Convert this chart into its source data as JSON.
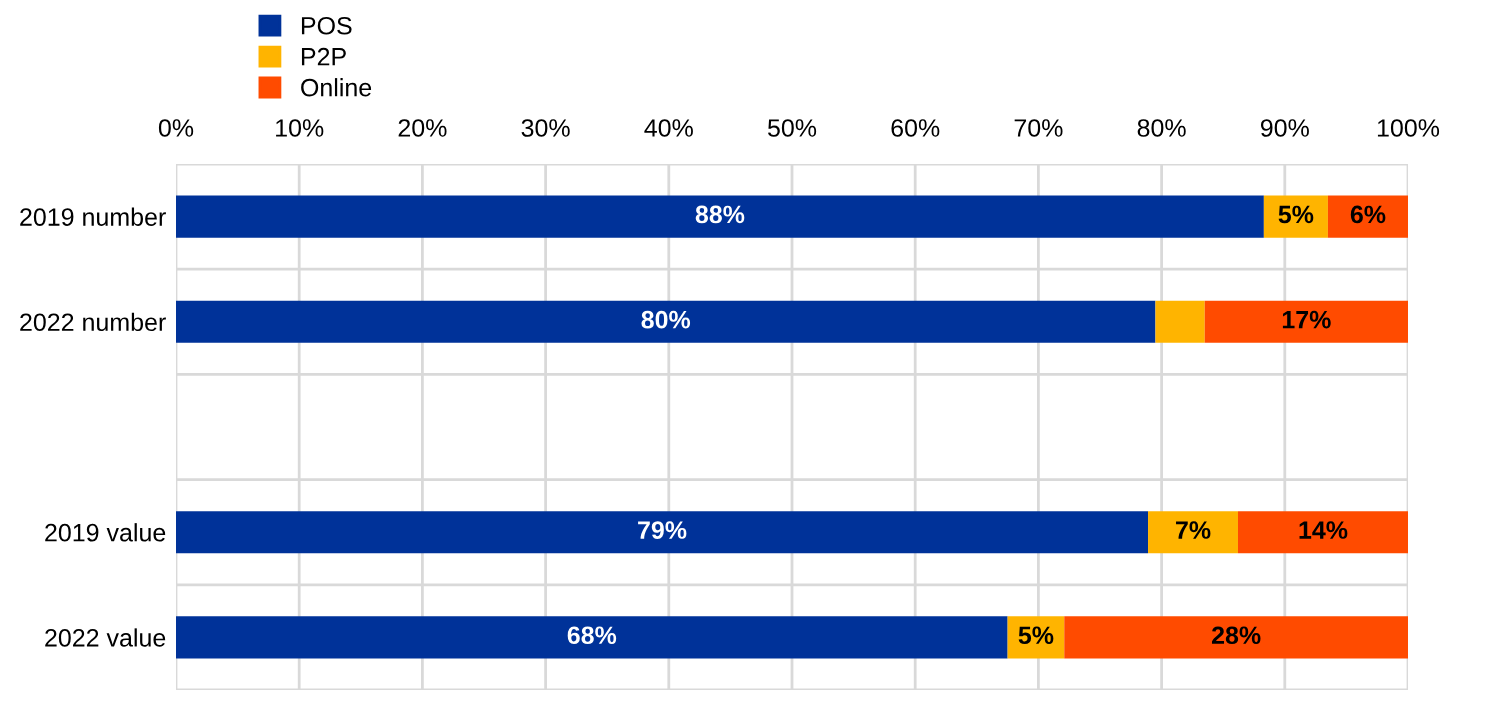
{
  "chart_data": {
    "type": "bar",
    "orientation": "horizontal",
    "stacked": true,
    "categories": [
      "2019 number",
      "2022 number",
      null,
      "2019 value",
      "2022 value"
    ],
    "series": [
      {
        "name": "POS",
        "color": "#003299",
        "values": [
          88.3,
          79.5,
          null,
          78.9,
          67.5
        ],
        "value_labels": [
          "88%",
          "80%",
          null,
          "79%",
          "68%"
        ]
      },
      {
        "name": "P2P",
        "color": "#ffb400",
        "values": [
          5.2,
          4,
          null,
          7.3,
          4.6
        ],
        "value_labels": [
          "5%",
          null,
          null,
          "7%",
          "5%"
        ]
      },
      {
        "name": "Online",
        "color": "#ff4b00",
        "values": [
          6.5,
          16.5,
          null,
          13.8,
          27.9
        ],
        "value_labels": [
          "6%",
          "17%",
          null,
          "14%",
          "28%"
        ]
      }
    ],
    "xlim": [
      0,
      100
    ],
    "xticks": [
      {
        "value": 0,
        "label": "0%"
      },
      {
        "value": 10,
        "label": "10%"
      },
      {
        "value": 20,
        "label": "20%"
      },
      {
        "value": 30,
        "label": "30%"
      },
      {
        "value": 40,
        "label": "40%"
      },
      {
        "value": 50,
        "label": "50%"
      },
      {
        "value": 60,
        "label": "60%"
      },
      {
        "value": 70,
        "label": "70%"
      },
      {
        "value": 80,
        "label": "80%"
      },
      {
        "value": 90,
        "label": "90%"
      },
      {
        "value": 100,
        "label": "100%"
      }
    ],
    "grid": true,
    "legend": "top left"
  }
}
